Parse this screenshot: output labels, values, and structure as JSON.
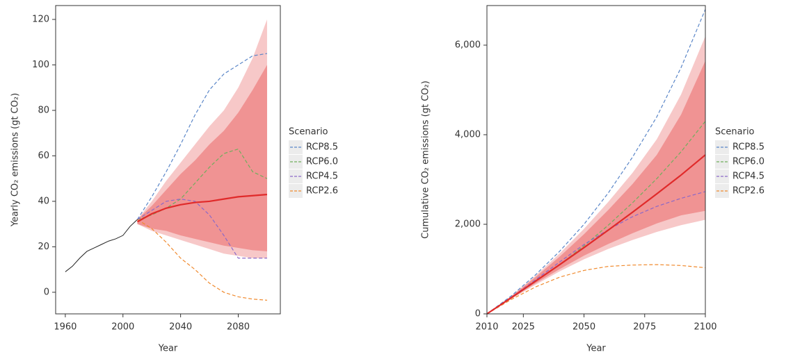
{
  "chart_data": [
    {
      "type": "line",
      "x_label": "Year",
      "y_label": "Yearly CO₂ emissions (gt CO₂)",
      "x": [
        1960,
        1965,
        1970,
        1975,
        1980,
        1985,
        1990,
        1995,
        2000,
        2005,
        2010,
        2020,
        2030,
        2040,
        2050,
        2060,
        2070,
        2080,
        2090,
        2100
      ],
      "xlim": [
        1953.3,
        2109.2
      ],
      "xticks": [
        1960,
        2000,
        2040,
        2080
      ],
      "ylim": [
        -9.5,
        126.1
      ],
      "yticks": [
        0,
        20,
        40,
        60,
        80,
        100,
        120
      ],
      "bands": [
        {
          "color": "#f7c8c8",
          "lower": [
            null,
            null,
            null,
            null,
            null,
            null,
            null,
            null,
            null,
            null,
            30,
            27,
            25,
            23,
            21,
            19,
            17,
            16,
            15,
            15
          ],
          "upper": [
            null,
            null,
            null,
            null,
            null,
            null,
            null,
            null,
            null,
            null,
            32,
            40,
            49,
            57,
            65,
            73,
            80,
            90,
            103,
            120
          ]
        },
        {
          "color": "#f09393",
          "lower": [
            null,
            null,
            null,
            null,
            null,
            null,
            null,
            null,
            null,
            null,
            30,
            28,
            27,
            25,
            23.5,
            22,
            20.5,
            19.5,
            18.5,
            18
          ],
          "upper": [
            null,
            null,
            null,
            null,
            null,
            null,
            null,
            null,
            null,
            null,
            32,
            38,
            45,
            52,
            58,
            65,
            71,
            79,
            89,
            100
          ]
        }
      ],
      "lines": [
        {
          "color": "#222222",
          "width": 1,
          "values": [
            9,
            11.5,
            15,
            18,
            19.5,
            21,
            22.5,
            23.5,
            25,
            29,
            32,
            null,
            null,
            null,
            null,
            null,
            null,
            null,
            null,
            null
          ]
        },
        {
          "color": "#e02a2a",
          "width": 2.2,
          "values": [
            null,
            null,
            null,
            null,
            null,
            null,
            null,
            null,
            null,
            null,
            31,
            34.5,
            37,
            38.5,
            39.5,
            40,
            41,
            42,
            42.5,
            43
          ]
        }
      ],
      "legend_title": "Scenario",
      "series": [
        {
          "name": "RCP8.5",
          "color": "#5a86c8",
          "values": [
            null,
            null,
            null,
            null,
            null,
            null,
            null,
            null,
            null,
            null,
            32,
            42,
            53,
            65,
            78,
            89,
            96,
            100,
            104,
            105
          ]
        },
        {
          "name": "RCP6.0",
          "color": "#6fae5c",
          "values": [
            null,
            null,
            null,
            null,
            null,
            null,
            null,
            null,
            null,
            null,
            32,
            34,
            37,
            41,
            48,
            55,
            61,
            63,
            53,
            50
          ]
        },
        {
          "name": "RCP4.5",
          "color": "#8b68c8",
          "values": [
            null,
            null,
            null,
            null,
            null,
            null,
            null,
            null,
            null,
            null,
            32,
            36,
            40,
            41,
            40,
            34,
            25,
            15,
            15,
            15
          ]
        },
        {
          "name": "RCP2.6",
          "color": "#f08a2e",
          "values": [
            null,
            null,
            null,
            null,
            null,
            null,
            null,
            null,
            null,
            null,
            32,
            28,
            22,
            15,
            10,
            4,
            0,
            -2,
            -3,
            -3.5
          ]
        }
      ]
    },
    {
      "type": "line",
      "x_label": "Year",
      "y_label": "Cumulative CO₂ emissions (gt CO₂)",
      "x": [
        2010,
        2020,
        2030,
        2040,
        2050,
        2060,
        2070,
        2080,
        2090,
        2100
      ],
      "xlim": [
        2010,
        2100
      ],
      "xticks": [
        2010,
        2025,
        2050,
        2075,
        2100
      ],
      "ylim": [
        0,
        6884
      ],
      "yticks": [
        0,
        {
          "value": 2000,
          "label": "2,000"
        },
        {
          "value": 4000,
          "label": "4,000"
        },
        {
          "value": 6000,
          "label": "6,000"
        }
      ],
      "bands": [
        {
          "color": "#f7c8c8",
          "lower": [
            0,
            330,
            650,
            950,
            1220,
            1450,
            1650,
            1830,
            1980,
            2100
          ],
          "upper": [
            0,
            400,
            850,
            1350,
            1900,
            2500,
            3150,
            3900,
            4900,
            6200
          ]
        },
        {
          "color": "#f09393",
          "lower": [
            0,
            340,
            680,
            1000,
            1300,
            1560,
            1800,
            2020,
            2200,
            2300
          ],
          "upper": [
            0,
            390,
            820,
            1280,
            1780,
            2320,
            2900,
            3550,
            4450,
            5650
          ]
        }
      ],
      "lines": [
        {
          "color": "#e02a2a",
          "width": 2.2,
          "values": [
            0,
            360,
            730,
            1100,
            1480,
            1870,
            2270,
            2680,
            3100,
            3550
          ]
        }
      ],
      "legend_title": "Scenario",
      "series": [
        {
          "name": "RCP8.5",
          "color": "#5a86c8",
          "values": [
            0,
            400,
            870,
            1400,
            2000,
            2700,
            3500,
            4400,
            5500,
            6800
          ]
        },
        {
          "name": "RCP6.0",
          "color": "#6fae5c",
          "values": [
            0,
            350,
            720,
            1100,
            1520,
            1980,
            2480,
            3020,
            3620,
            4300
          ]
        },
        {
          "name": "RCP4.5",
          "color": "#8b68c8",
          "values": [
            0,
            370,
            760,
            1160,
            1550,
            1880,
            2170,
            2400,
            2580,
            2730
          ]
        },
        {
          "name": "RCP2.6",
          "color": "#f08a2e",
          "values": [
            0,
            320,
            600,
            820,
            970,
            1060,
            1090,
            1100,
            1080,
            1030
          ]
        }
      ]
    }
  ]
}
